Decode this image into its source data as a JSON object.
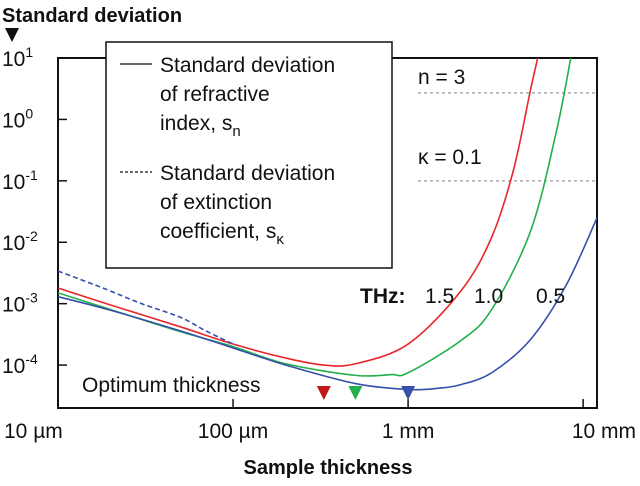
{
  "chart_data": {
    "type": "line",
    "title": "",
    "ylabel": "Standard deviation",
    "xlabel": "Sample thickness",
    "x_scale": "log",
    "y_scale": "log",
    "xlim": [
      0.01,
      12
    ],
    "ylim": [
      2e-05,
      10
    ],
    "grid": false,
    "x_ticks": [
      {
        "value": 0.01,
        "label": "10 µm"
      },
      {
        "value": 0.1,
        "label": "100 µm"
      },
      {
        "value": 1,
        "label": "1 mm"
      },
      {
        "value": 10,
        "label": "10 mm"
      }
    ],
    "y_ticks": [
      {
        "value": 10,
        "base": "10",
        "exp": "1"
      },
      {
        "value": 1,
        "base": "10",
        "exp": "0"
      },
      {
        "value": 0.1,
        "base": "10",
        "exp": "-1"
      },
      {
        "value": 0.01,
        "base": "10",
        "exp": "-2"
      },
      {
        "value": 0.001,
        "base": "10",
        "exp": "-3"
      },
      {
        "value": 0.0001,
        "base": "10",
        "exp": "-4"
      }
    ],
    "legend": {
      "placement": "top-left",
      "entries": [
        {
          "style": "solid",
          "lines": [
            "Standard deviation",
            "of refractive",
            "index, s"
          ],
          "sub": "n"
        },
        {
          "style": "dashed",
          "lines": [
            "Standard deviation",
            "of extinction",
            "coefficient, s"
          ],
          "sub": "κ"
        }
      ]
    },
    "reference_lines": [
      {
        "label": "n = 3",
        "y": 2.7
      },
      {
        "label": "κ = 0.1",
        "y": 0.1
      }
    ],
    "frequency_label": {
      "prefix": "THz:",
      "values": [
        "1.5",
        "1.0",
        "0.5"
      ]
    },
    "optimum": {
      "label": "Optimum thickness",
      "markers": [
        {
          "x": 0.33,
          "color": "#c0181b"
        },
        {
          "x": 0.5,
          "color": "#23b04a"
        },
        {
          "x": 1.0,
          "color": "#3550a8"
        }
      ]
    },
    "series": [
      {
        "frequency": "1.5",
        "color": "#e8262b",
        "style": "solid",
        "x": [
          0.01,
          0.02,
          0.05,
          0.1,
          0.2,
          0.33,
          0.5,
          1,
          2,
          3,
          4,
          5,
          5.5
        ],
        "y": [
          0.0018,
          0.00095,
          0.00042,
          0.00022,
          0.00013,
          0.0001,
          0.000105,
          0.00022,
          0.0016,
          0.012,
          0.15,
          3,
          10
        ]
      },
      {
        "frequency": "1.0",
        "color": "#23b04a",
        "style": "solid",
        "x": [
          0.01,
          0.02,
          0.05,
          0.1,
          0.2,
          0.5,
          0.8,
          1,
          2,
          3,
          5,
          7,
          8.5
        ],
        "y": [
          0.0015,
          0.0008,
          0.00035,
          0.0002,
          0.000105,
          6.8e-05,
          7e-05,
          7.5e-05,
          0.00025,
          0.0008,
          0.015,
          0.6,
          10
        ]
      },
      {
        "frequency": "0.5",
        "color": "#3550a8",
        "style": "solid",
        "x": [
          0.01,
          0.02,
          0.05,
          0.1,
          0.2,
          0.5,
          1,
          1.5,
          2,
          3,
          5,
          8,
          12
        ],
        "y": [
          0.0013,
          0.00078,
          0.00036,
          0.00019,
          0.0001,
          5e-05,
          4e-05,
          4.2e-05,
          4.8e-05,
          7.5e-05,
          0.00026,
          0.002,
          0.025
        ]
      },
      {
        "frequency": "0.5",
        "color": "#3550a8",
        "style": "dashed",
        "x": [
          0.01,
          0.015,
          0.02,
          0.03,
          0.05,
          0.07,
          0.1
        ],
        "y": [
          0.0034,
          0.0022,
          0.0016,
          0.001,
          0.0006,
          0.00036,
          0.00022
        ]
      }
    ]
  }
}
